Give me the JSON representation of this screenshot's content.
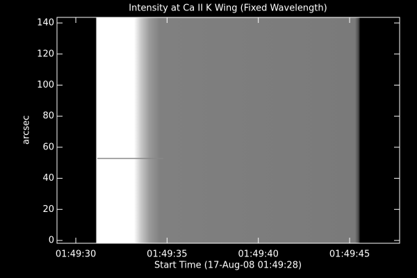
{
  "chart_data": {
    "type": "image",
    "title": "Intensity at Ca II K Wing (Fixed Wavelength)",
    "xlabel": "Start Time (17-Aug-08 01:49:28)",
    "ylabel": "arcsec",
    "xlim": [
      0.97,
      19.74
    ],
    "xticks": [
      {
        "value": 2,
        "label": "01:49:30"
      },
      {
        "value": 7,
        "label": "01:49:35"
      },
      {
        "value": 12,
        "label": "01:49:40"
      },
      {
        "value": 17,
        "label": "01:49:45"
      }
    ],
    "ylim": [
      -1.8,
      143.6
    ],
    "yticks": [
      0,
      20,
      40,
      60,
      80,
      100,
      120,
      140
    ]
  }
}
